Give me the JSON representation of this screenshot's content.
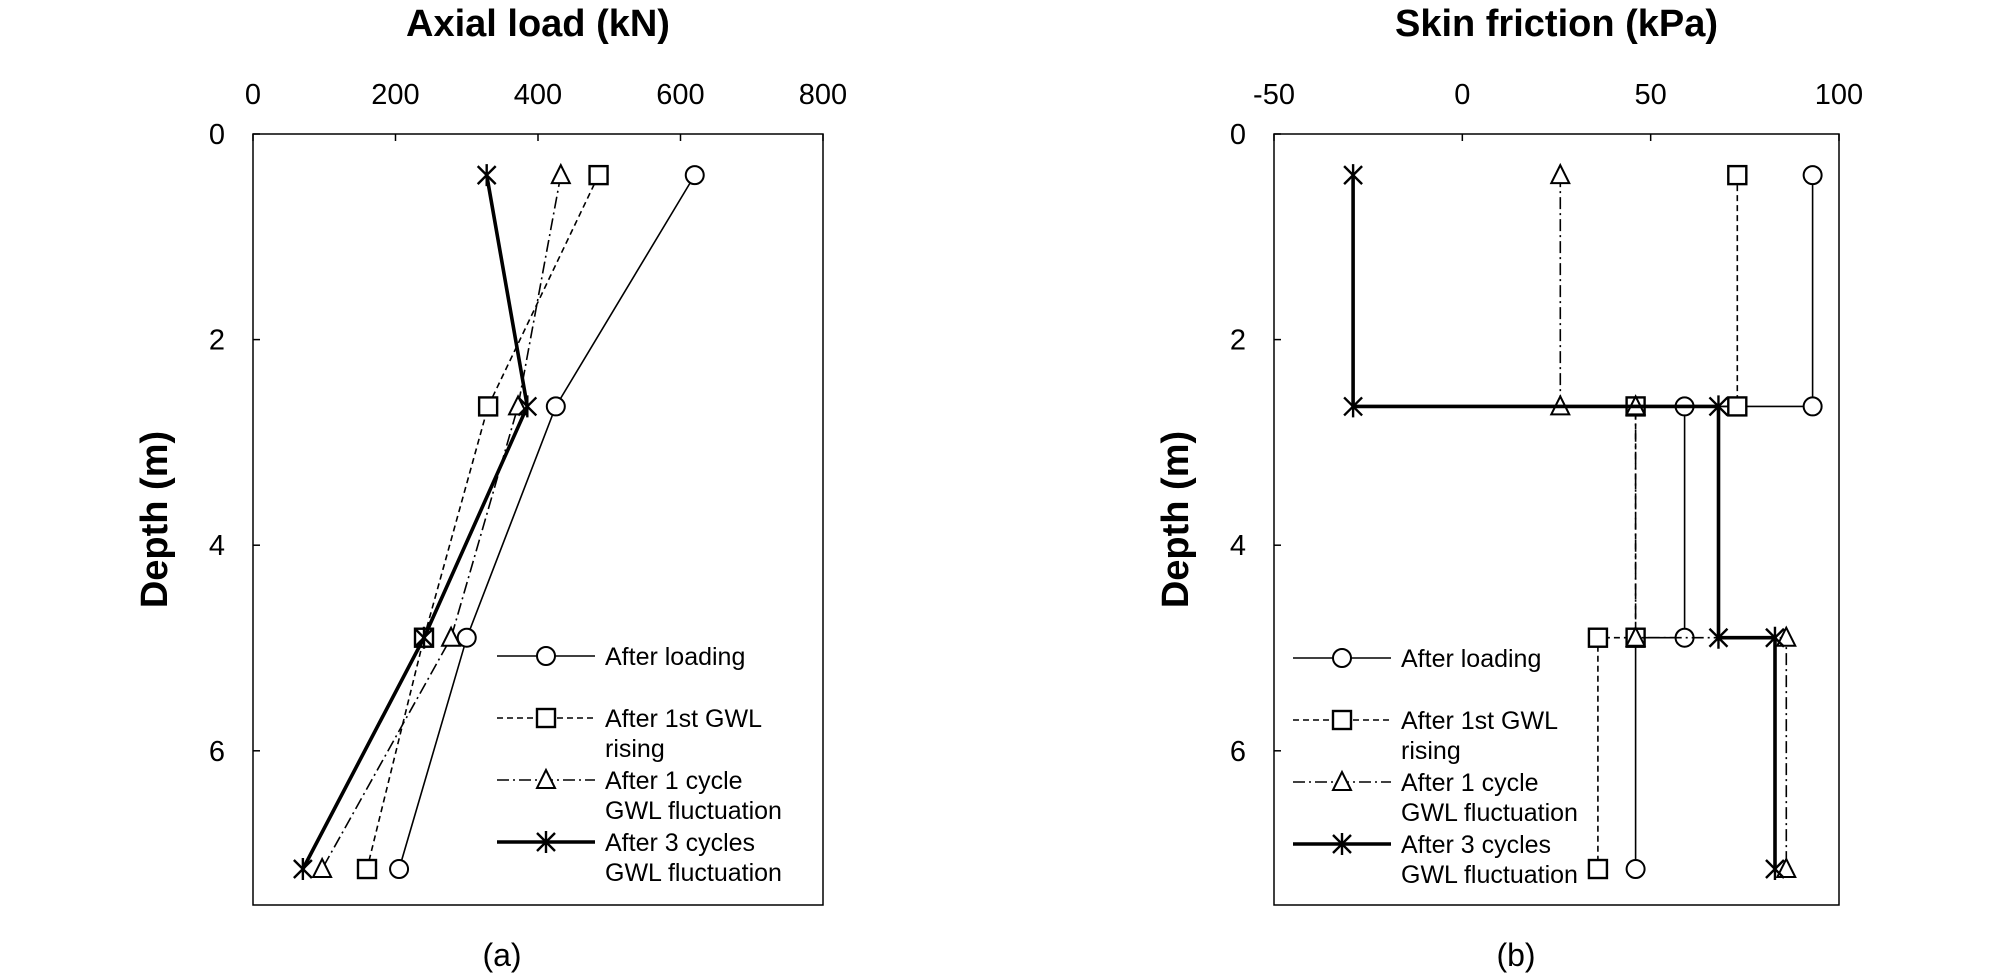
{
  "chart_data": [
    {
      "type": "line",
      "panel_label": "(a)",
      "title": "Axial load (kN)",
      "xlabel": "Axial load (kN)",
      "ylabel": "Depth (m)",
      "xlim": [
        0,
        800
      ],
      "ylim": [
        0,
        7.5
      ],
      "y_inverted": true,
      "x_axis_position": "top",
      "x_ticks": [
        "0",
        "200",
        "400",
        "600",
        "800"
      ],
      "y_ticks": [
        "0",
        "2",
        "4",
        "6"
      ],
      "grid": false,
      "legend_position": "bottom-right",
      "series": [
        {
          "name": "After loading",
          "marker": "circle",
          "line": "solid-thin",
          "x": [
            620,
            425,
            300,
            205
          ],
          "y": [
            0.4,
            2.65,
            4.9,
            7.15
          ]
        },
        {
          "name": "After 1st GWL rising",
          "marker": "square",
          "line": "dashed",
          "x": [
            485,
            330,
            240,
            160
          ],
          "y": [
            0.4,
            2.65,
            4.9,
            7.15
          ]
        },
        {
          "name": "After 1 cycle GWL fluctuation",
          "marker": "triangle",
          "line": "dashdot",
          "x": [
            432,
            372,
            278,
            97
          ],
          "y": [
            0.4,
            2.65,
            4.9,
            7.15
          ]
        },
        {
          "name": "After 3 cycles GWL fluctuation",
          "marker": "star",
          "line": "solid-thick",
          "x": [
            328,
            385,
            240,
            70
          ],
          "y": [
            0.4,
            2.65,
            4.9,
            7.15
          ]
        }
      ]
    },
    {
      "type": "line",
      "panel_label": "(b)",
      "title": "Skin friction (kPa)",
      "xlabel": "Skin friction (kPa)",
      "ylabel": "Depth (m)",
      "xlim": [
        -50,
        100
      ],
      "ylim": [
        0,
        7.5
      ],
      "y_inverted": true,
      "x_axis_position": "top",
      "x_ticks": [
        "-50",
        "0",
        "50",
        "100"
      ],
      "y_ticks": [
        "0",
        "2",
        "4",
        "6"
      ],
      "grid": false,
      "legend_position": "bottom-left",
      "series": [
        {
          "name": "After loading",
          "marker": "circle",
          "line": "solid-thin",
          "x": [
            93,
            93,
            59,
            59,
            46,
            46
          ],
          "y": [
            0.4,
            2.65,
            2.65,
            4.9,
            4.9,
            7.15
          ],
          "markers_x": [
            93,
            93,
            59,
            59,
            46,
            46
          ],
          "markers_y": [
            0.4,
            2.65,
            2.65,
            4.9,
            4.9,
            7.15
          ]
        },
        {
          "name": "After 1st GWL rising",
          "marker": "square",
          "line": "dashed",
          "x": [
            73,
            73,
            46,
            46,
            36,
            36
          ],
          "y": [
            0.4,
            2.65,
            2.65,
            4.9,
            4.9,
            7.15
          ],
          "markers_x": [
            73,
            73,
            46,
            46,
            36,
            36
          ],
          "markers_y": [
            0.4,
            2.65,
            2.65,
            4.9,
            4.9,
            7.15
          ]
        },
        {
          "name": "After 1 cycle GWL fluctuation",
          "marker": "triangle",
          "line": "dashdot",
          "x": [
            26,
            26,
            46,
            46,
            86,
            86
          ],
          "y": [
            0.4,
            2.65,
            2.65,
            4.9,
            4.9,
            7.15
          ],
          "markers_x": [
            26,
            26,
            46,
            46,
            86,
            86
          ],
          "markers_y": [
            0.4,
            2.65,
            2.65,
            4.9,
            4.9,
            7.15
          ]
        },
        {
          "name": "After 3 cycles GWL fluctuation",
          "marker": "star",
          "line": "solid-thick",
          "x": [
            -29,
            -29,
            68,
            68,
            83,
            83
          ],
          "y": [
            0.4,
            2.65,
            2.65,
            4.9,
            4.9,
            7.15
          ],
          "markers_x": [
            -29,
            -29,
            68,
            68,
            83,
            83
          ],
          "markers_y": [
            0.4,
            2.65,
            2.65,
            4.9,
            4.9,
            7.15
          ]
        }
      ]
    }
  ],
  "legend": {
    "items": [
      {
        "line1": "After loading",
        "line2": ""
      },
      {
        "line1": "After 1st GWL",
        "line2": "rising"
      },
      {
        "line1": "After 1 cycle",
        "line2": "GWL fluctuation"
      },
      {
        "line1": "After 3 cycles",
        "line2": "GWL fluctuation"
      }
    ]
  }
}
